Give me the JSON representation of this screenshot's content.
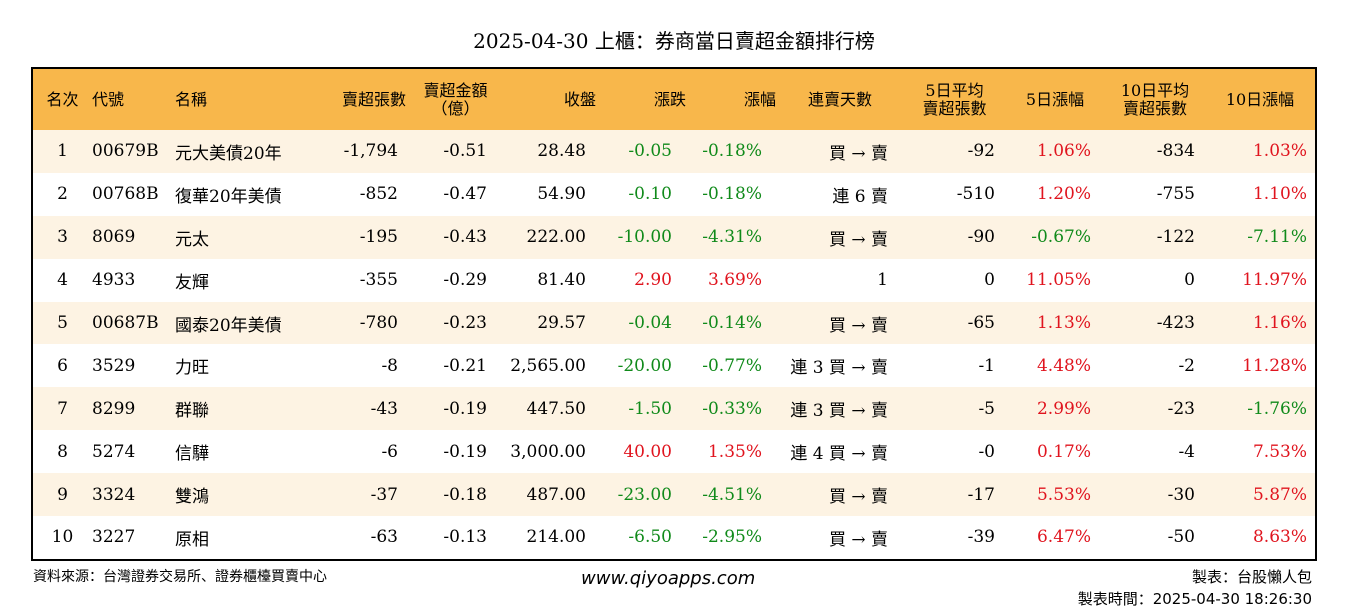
{
  "title": "2025-04-30 上櫃：券商當日賣超金額排行榜",
  "headers": {
    "rank": "名次",
    "code": "代號",
    "name": "名稱",
    "sell_vol": "賣超張數",
    "sell_amt_l1": "賣超金額",
    "sell_amt_l2": "（億）",
    "close": "收盤",
    "change": "漲跌",
    "pct": "漲幅",
    "streak": "連賣天數",
    "avg5_l1": "5日平均",
    "avg5_l2": "賣超張數",
    "pct5": "5日漲幅",
    "avg10_l1": "10日平均",
    "avg10_l2": "賣超張數",
    "pct10": "10日漲幅"
  },
  "rows": [
    {
      "rank": "1",
      "code": "00679B",
      "name": "元大美債20年",
      "sell_vol": "-1,794",
      "sell_amt": "-0.51",
      "close": "28.48",
      "change": "-0.05",
      "change_color": "neg",
      "pct": "-0.18%",
      "pct_color": "neg",
      "streak": "買 → 賣",
      "avg5": "-92",
      "pct5": "1.06%",
      "pct5_color": "pos",
      "avg10": "-834",
      "pct10": "1.03%",
      "pct10_color": "pos"
    },
    {
      "rank": "2",
      "code": "00768B",
      "name": "復華20年美債",
      "sell_vol": "-852",
      "sell_amt": "-0.47",
      "close": "54.90",
      "change": "-0.10",
      "change_color": "neg",
      "pct": "-0.18%",
      "pct_color": "neg",
      "streak": "連 6 賣",
      "avg5": "-510",
      "pct5": "1.20%",
      "pct5_color": "pos",
      "avg10": "-755",
      "pct10": "1.10%",
      "pct10_color": "pos"
    },
    {
      "rank": "3",
      "code": "8069",
      "name": "元太",
      "sell_vol": "-195",
      "sell_amt": "-0.43",
      "close": "222.00",
      "change": "-10.00",
      "change_color": "neg",
      "pct": "-4.31%",
      "pct_color": "neg",
      "streak": "買 → 賣",
      "avg5": "-90",
      "pct5": "-0.67%",
      "pct5_color": "neg",
      "avg10": "-122",
      "pct10": "-7.11%",
      "pct10_color": "neg"
    },
    {
      "rank": "4",
      "code": "4933",
      "name": "友輝",
      "sell_vol": "-355",
      "sell_amt": "-0.29",
      "close": "81.40",
      "change": "2.90",
      "change_color": "pos",
      "pct": "3.69%",
      "pct_color": "pos",
      "streak": "1",
      "avg5": "0",
      "pct5": "11.05%",
      "pct5_color": "pos",
      "avg10": "0",
      "pct10": "11.97%",
      "pct10_color": "pos"
    },
    {
      "rank": "5",
      "code": "00687B",
      "name": "國泰20年美債",
      "sell_vol": "-780",
      "sell_amt": "-0.23",
      "close": "29.57",
      "change": "-0.04",
      "change_color": "neg",
      "pct": "-0.14%",
      "pct_color": "neg",
      "streak": "買 → 賣",
      "avg5": "-65",
      "pct5": "1.13%",
      "pct5_color": "pos",
      "avg10": "-423",
      "pct10": "1.16%",
      "pct10_color": "pos"
    },
    {
      "rank": "6",
      "code": "3529",
      "name": "力旺",
      "sell_vol": "-8",
      "sell_amt": "-0.21",
      "close": "2,565.00",
      "change": "-20.00",
      "change_color": "neg",
      "pct": "-0.77%",
      "pct_color": "neg",
      "streak": "連 3 買 → 賣",
      "avg5": "-1",
      "pct5": "4.48%",
      "pct5_color": "pos",
      "avg10": "-2",
      "pct10": "11.28%",
      "pct10_color": "pos"
    },
    {
      "rank": "7",
      "code": "8299",
      "name": "群聯",
      "sell_vol": "-43",
      "sell_amt": "-0.19",
      "close": "447.50",
      "change": "-1.50",
      "change_color": "neg",
      "pct": "-0.33%",
      "pct_color": "neg",
      "streak": "連 3 買 → 賣",
      "avg5": "-5",
      "pct5": "2.99%",
      "pct5_color": "pos",
      "avg10": "-23",
      "pct10": "-1.76%",
      "pct10_color": "neg"
    },
    {
      "rank": "8",
      "code": "5274",
      "name": "信驊",
      "sell_vol": "-6",
      "sell_amt": "-0.19",
      "close": "3,000.00",
      "change": "40.00",
      "change_color": "pos",
      "pct": "1.35%",
      "pct_color": "pos",
      "streak": "連 4 買 → 賣",
      "avg5": "-0",
      "pct5": "0.17%",
      "pct5_color": "pos",
      "avg10": "-4",
      "pct10": "7.53%",
      "pct10_color": "pos"
    },
    {
      "rank": "9",
      "code": "3324",
      "name": "雙鴻",
      "sell_vol": "-37",
      "sell_amt": "-0.18",
      "close": "487.00",
      "change": "-23.00",
      "change_color": "neg",
      "pct": "-4.51%",
      "pct_color": "neg",
      "streak": "買 → 賣",
      "avg5": "-17",
      "pct5": "5.53%",
      "pct5_color": "pos",
      "avg10": "-30",
      "pct10": "5.87%",
      "pct10_color": "pos"
    },
    {
      "rank": "10",
      "code": "3227",
      "name": "原相",
      "sell_vol": "-63",
      "sell_amt": "-0.13",
      "close": "214.00",
      "change": "-6.50",
      "change_color": "neg",
      "pct": "-2.95%",
      "pct_color": "neg",
      "streak": "買 → 賣",
      "avg5": "-39",
      "pct5": "6.47%",
      "pct5_color": "pos",
      "avg10": "-50",
      "pct10": "8.63%",
      "pct10_color": "pos"
    }
  ],
  "colors": {
    "header_bg": "#f8b74b",
    "odd_row_bg": "#fdf3e3",
    "pos": "#e0141e",
    "neg": "#108a1a"
  },
  "footer": {
    "source": "資料來源：台灣證券交易所、證券櫃檯買賣中心",
    "website": "www.qiyoapps.com",
    "maker": "製表：台股懶人包",
    "made_time": "製表時間：2025-04-30 18:26:30"
  }
}
